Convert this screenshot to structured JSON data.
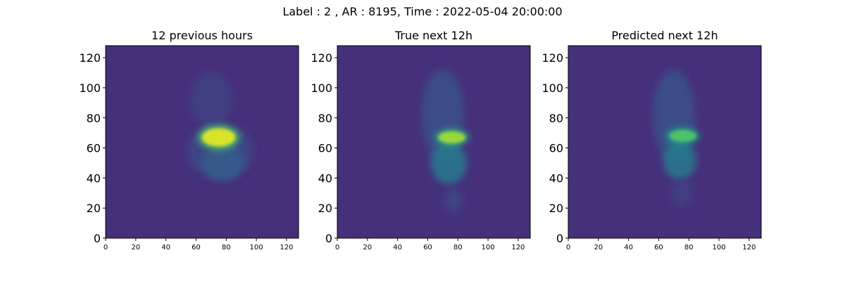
{
  "figure": {
    "suptitle": "Label : 2 , AR : 8195, Time : 2022-05-04 20:00:00"
  },
  "chart_data": [
    {
      "type": "heatmap",
      "title": "12 previous hours",
      "xlabel": "",
      "ylabel": "",
      "xlim": [
        0,
        128
      ],
      "ylim": [
        0,
        128
      ],
      "x_ticks": [
        0,
        20,
        40,
        60,
        80,
        100,
        120
      ],
      "y_ticks": [
        0,
        20,
        40,
        60,
        80,
        100,
        120
      ],
      "colormap": "viridis",
      "background_color": "#46307c",
      "features": [
        {
          "type": "plage",
          "cx": 70,
          "cy": 92,
          "rx": 14,
          "ry": 18,
          "intensity": 0.2
        },
        {
          "type": "plage",
          "cx": 76,
          "cy": 58,
          "rx": 22,
          "ry": 18,
          "intensity": 0.22
        },
        {
          "type": "loops",
          "cx": 78,
          "cy": 50,
          "rx": 14,
          "ry": 12,
          "intensity": 0.3
        },
        {
          "type": "bright_core",
          "cx": 75,
          "cy": 67,
          "rx": 11,
          "ry": 6,
          "intensity": 0.95
        }
      ]
    },
    {
      "type": "heatmap",
      "title": "True next 12h",
      "xlabel": "",
      "ylabel": "",
      "xlim": [
        0,
        128
      ],
      "ylim": [
        0,
        128
      ],
      "x_ticks": [
        0,
        20,
        40,
        60,
        80,
        100,
        120
      ],
      "y_ticks": [
        0,
        20,
        40,
        60,
        80,
        100,
        120
      ],
      "colormap": "viridis",
      "background_color": "#46307c",
      "features": [
        {
          "type": "plage",
          "cx": 70,
          "cy": 82,
          "rx": 14,
          "ry": 30,
          "intensity": 0.25
        },
        {
          "type": "loops",
          "cx": 74,
          "cy": 50,
          "rx": 12,
          "ry": 14,
          "intensity": 0.42
        },
        {
          "type": "bright_core",
          "cx": 76,
          "cy": 67,
          "rx": 9,
          "ry": 4,
          "intensity": 0.85
        },
        {
          "type": "tail",
          "cx": 77,
          "cy": 25,
          "rx": 6,
          "ry": 8,
          "intensity": 0.22
        }
      ]
    },
    {
      "type": "heatmap",
      "title": "Predicted next 12h",
      "xlabel": "",
      "ylabel": "",
      "xlim": [
        0,
        128
      ],
      "ylim": [
        0,
        128
      ],
      "x_ticks": [
        0,
        20,
        40,
        60,
        80,
        100,
        120
      ],
      "y_ticks": [
        0,
        20,
        40,
        60,
        80,
        100,
        120
      ],
      "colormap": "viridis",
      "background_color": "#46307c",
      "features": [
        {
          "type": "plage",
          "cx": 70,
          "cy": 82,
          "rx": 14,
          "ry": 30,
          "intensity": 0.25
        },
        {
          "type": "loops",
          "cx": 74,
          "cy": 52,
          "rx": 11,
          "ry": 13,
          "intensity": 0.42
        },
        {
          "type": "bright_core",
          "cx": 76,
          "cy": 68,
          "rx": 9,
          "ry": 4,
          "intensity": 0.72
        },
        {
          "type": "tail",
          "cx": 75,
          "cy": 30,
          "rx": 7,
          "ry": 9,
          "intensity": 0.2
        }
      ]
    }
  ]
}
